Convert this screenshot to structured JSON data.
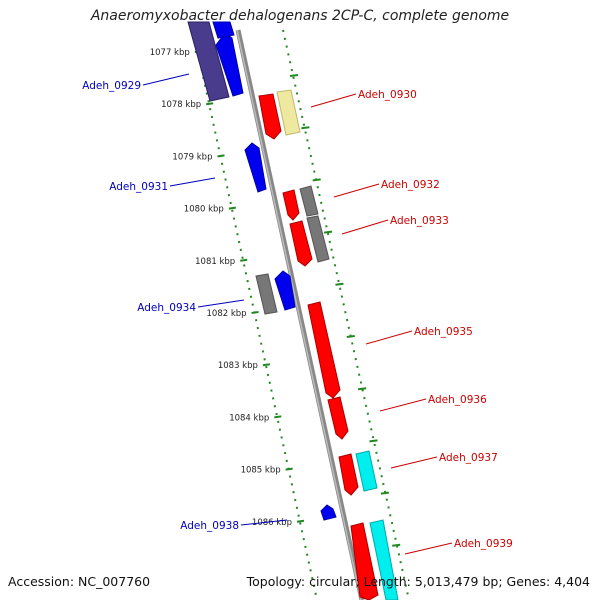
{
  "title": "Anaeromyxobacter dehalogenans 2CP-C, complete genome",
  "footer": {
    "accession": "Accession: NC_007760",
    "summary": "Topology: circular; Length: 5,013,479 bp; Genes: 4,404"
  },
  "kbp_ticks": [
    {
      "label": "1077 kbp",
      "kbp": 1077
    },
    {
      "label": "1078 kbp",
      "kbp": 1078
    },
    {
      "label": "1079 kbp",
      "kbp": 1079
    },
    {
      "label": "1080 kbp",
      "kbp": 1080
    },
    {
      "label": "1081 kbp",
      "kbp": 1081
    },
    {
      "label": "1082 kbp",
      "kbp": 1082
    },
    {
      "label": "1083 kbp",
      "kbp": 1083
    },
    {
      "label": "1084 kbp",
      "kbp": 1084
    },
    {
      "label": "1085 kbp",
      "kbp": 1085
    },
    {
      "label": "1086 kbp",
      "kbp": 1086
    }
  ],
  "gene_labels": [
    {
      "name": "Adeh_0929",
      "strand": "reverse"
    },
    {
      "name": "Adeh_0930",
      "strand": "forward"
    },
    {
      "name": "Adeh_0931",
      "strand": "reverse"
    },
    {
      "name": "Adeh_0932",
      "strand": "forward"
    },
    {
      "name": "Adeh_0933",
      "strand": "forward"
    },
    {
      "name": "Adeh_0934",
      "strand": "reverse"
    },
    {
      "name": "Adeh_0935",
      "strand": "forward"
    },
    {
      "name": "Adeh_0936",
      "strand": "forward"
    },
    {
      "name": "Adeh_0937",
      "strand": "forward"
    },
    {
      "name": "Adeh_0938",
      "strand": "reverse"
    },
    {
      "name": "Adeh_0939",
      "strand": "forward"
    }
  ],
  "colors": {
    "forward_label": "#cc0000",
    "reverse_label": "#0000bb",
    "forward_gene": "#ff0000",
    "reverse_gene": "#0000ee",
    "backbone": "#888888",
    "ruler_dots": "#228822",
    "cog_grey": "#777777",
    "cog_yellow": "#eee8a0",
    "cog_cyan": "#00eeee",
    "cog_navy": "#4a3c8c"
  }
}
